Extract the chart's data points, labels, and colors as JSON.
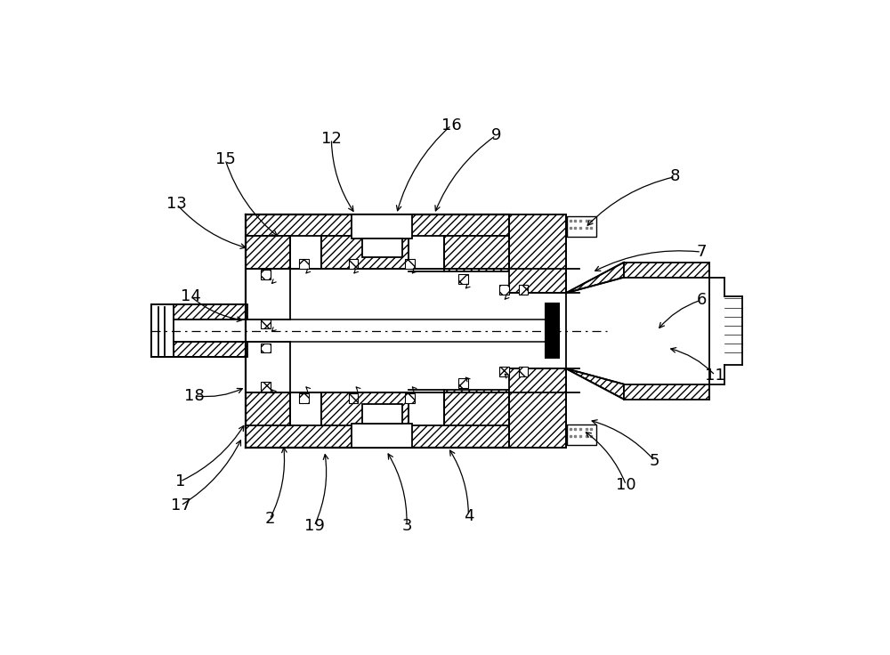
{
  "bg": "#ffffff",
  "lc": "#000000",
  "leaders": [
    [
      "1",
      [
        97,
        588
      ],
      [
        193,
        502
      ]
    ],
    [
      "2",
      [
        228,
        643
      ],
      [
        248,
        533
      ]
    ],
    [
      "3",
      [
        428,
        653
      ],
      [
        398,
        543
      ]
    ],
    [
      "4",
      [
        518,
        638
      ],
      [
        488,
        538
      ]
    ],
    [
      "5",
      [
        790,
        558
      ],
      [
        693,
        498
      ]
    ],
    [
      "6",
      [
        858,
        323
      ],
      [
        793,
        368
      ]
    ],
    [
      "7",
      [
        858,
        253
      ],
      [
        698,
        283
      ]
    ],
    [
      "8",
      [
        820,
        143
      ],
      [
        688,
        218
      ]
    ],
    [
      "9",
      [
        558,
        83
      ],
      [
        468,
        198
      ]
    ],
    [
      "10",
      [
        748,
        593
      ],
      [
        685,
        513
      ]
    ],
    [
      "11",
      [
        878,
        433
      ],
      [
        808,
        393
      ]
    ],
    [
      "12",
      [
        318,
        88
      ],
      [
        353,
        198
      ]
    ],
    [
      "13",
      [
        92,
        183
      ],
      [
        198,
        248
      ]
    ],
    [
      "14",
      [
        113,
        318
      ],
      [
        193,
        353
      ]
    ],
    [
      "15",
      [
        163,
        118
      ],
      [
        243,
        233
      ]
    ],
    [
      "16",
      [
        493,
        68
      ],
      [
        413,
        198
      ]
    ],
    [
      "17",
      [
        98,
        623
      ],
      [
        188,
        523
      ]
    ],
    [
      "18",
      [
        118,
        463
      ],
      [
        193,
        450
      ]
    ],
    [
      "19",
      [
        293,
        653
      ],
      [
        308,
        543
      ]
    ]
  ]
}
